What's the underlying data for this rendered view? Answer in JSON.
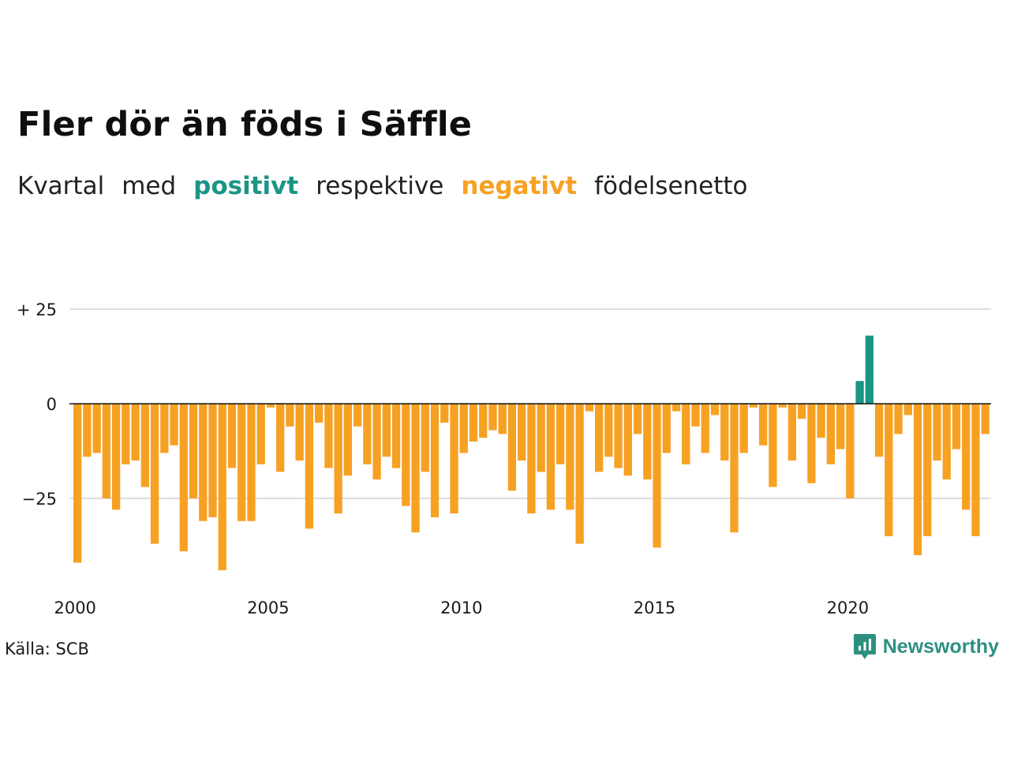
{
  "header": {
    "title": "Fler dör än föds i Säffle",
    "subtitle": {
      "part1": "Kvartal",
      "part2": "med",
      "positive": "positivt",
      "part3": "respektive",
      "negative": "negativt",
      "part4": "födelsenetto"
    }
  },
  "colors": {
    "positive": "#1b9585",
    "negative": "#f7a123",
    "grid": "#dddddd",
    "zero": "#111111"
  },
  "chart_data": {
    "type": "bar",
    "title": "Fler dör än föds i Säffle",
    "xlabel": "",
    "ylabel": "",
    "x_start_year": 2000,
    "periods_per_year": 4,
    "yticks": [
      {
        "value": 25,
        "label": "+ 25"
      },
      {
        "value": 0,
        "label": "0"
      },
      {
        "value": -25,
        "label": "−25"
      }
    ],
    "xticks": [
      {
        "value": 2000,
        "label": "2000"
      },
      {
        "value": 2005,
        "label": "2005"
      },
      {
        "value": 2010,
        "label": "2010"
      },
      {
        "value": 2015,
        "label": "2015"
      },
      {
        "value": 2020,
        "label": "2020"
      }
    ],
    "ylim": [
      -45,
      25
    ],
    "grid": true,
    "values": [
      -42,
      -14,
      -13,
      -25,
      -28,
      -16,
      -15,
      -22,
      -37,
      -13,
      -11,
      -39,
      -25,
      -31,
      -30,
      -44,
      -17,
      -31,
      -31,
      -16,
      -1,
      -18,
      -6,
      -15,
      -33,
      -5,
      -17,
      -29,
      -19,
      -6,
      -16,
      -20,
      -14,
      -17,
      -27,
      -34,
      -18,
      -30,
      -5,
      -29,
      -13,
      -10,
      -9,
      -7,
      -8,
      -23,
      -15,
      -29,
      -18,
      -28,
      -16,
      -28,
      -37,
      -2,
      -18,
      -14,
      -17,
      -19,
      -8,
      -20,
      -38,
      -13,
      -2,
      -16,
      -6,
      -13,
      -3,
      -15,
      -34,
      -13,
      -1,
      -11,
      -22,
      -1,
      -15,
      -4,
      -21,
      -9,
      -16,
      -12,
      -25,
      6,
      18,
      -14,
      -35,
      -8,
      -3,
      -40,
      -35,
      -15,
      -20,
      -12,
      -28,
      -35,
      -8
    ]
  },
  "footer": {
    "source": "Källa: SCB",
    "brand": "Newsworthy",
    "brand_icon": "newsworthy-logo-icon"
  }
}
